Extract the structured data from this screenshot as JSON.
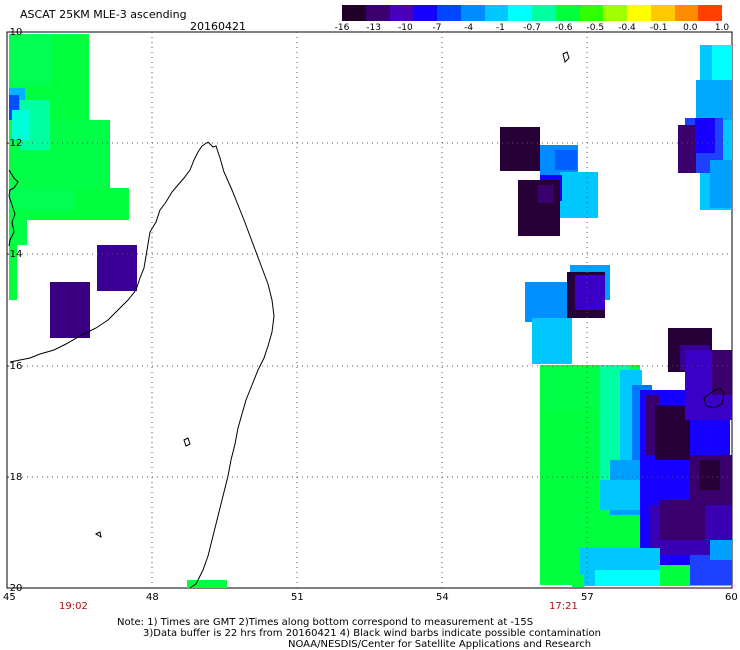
{
  "header": {
    "title": "ASCAT 25KM MLE-3 ascending",
    "date": "20160421"
  },
  "colorbar": {
    "colors": [
      "#1e0028",
      "#3a006e",
      "#4a00b8",
      "#1600ff",
      "#0046ff",
      "#008cff",
      "#00c8ff",
      "#00ffff",
      "#00ffa0",
      "#00ff3c",
      "#30ff00",
      "#a0ff00",
      "#ffff00",
      "#ffc800",
      "#ff8c00",
      "#ff4000"
    ],
    "labels": [
      "-16",
      "-13",
      "-10",
      "-7",
      "-4",
      "-1",
      "-0.7",
      "-0.6",
      "-0.5",
      "-0.4",
      "-0.1",
      "0.0",
      "1.0"
    ]
  },
  "axes": {
    "x_ticks": [
      "45",
      "48",
      "51",
      "54",
      "57",
      "60"
    ],
    "y_ticks": [
      "-10",
      "-12",
      "-14",
      "-16",
      "-18",
      "-20"
    ],
    "pass_times": [
      "19:02",
      "17:21"
    ]
  },
  "footer": {
    "note_line1": "Note: 1) Times are GMT 2)Times along bottom correspond to measurement at -15S",
    "note_line2": "3)Data buffer is 22 hrs from 20160421 4) Black wind barbs indicate possible contamination",
    "credit": "NOAA/NESDIS/Center for Satellite Applications and Research"
  }
}
